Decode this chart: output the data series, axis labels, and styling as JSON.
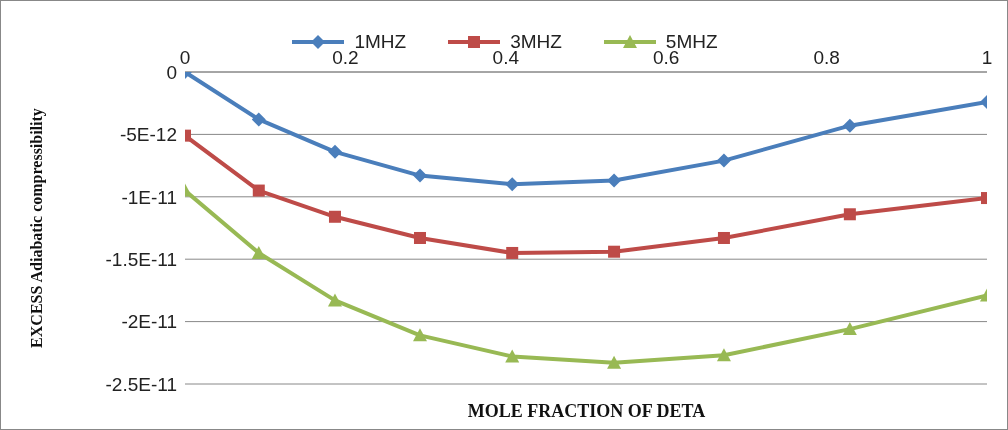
{
  "chart_data": {
    "type": "line",
    "xlabel": "MOLE FRACTION OF DETA",
    "ylabel": "EXCESS  Adiabatic compressibility",
    "x": [
      0,
      0.092,
      0.187,
      0.293,
      0.408,
      0.535,
      0.672,
      0.829,
      1.0
    ],
    "series": [
      {
        "name": "1MHZ",
        "color": "#4a7ebb",
        "marker": "diamond",
        "values": [
          0,
          -3.8e-12,
          -6.4e-12,
          -8.3e-12,
          -9e-12,
          -8.7e-12,
          -7.1e-12,
          -4.3e-12,
          -2.4e-12
        ]
      },
      {
        "name": "3MHZ",
        "color": "#be4b48",
        "marker": "square",
        "values": [
          -5.1e-12,
          -9.5e-12,
          -1.16e-11,
          -1.33e-11,
          -1.45e-11,
          -1.44e-11,
          -1.33e-11,
          -1.14e-11,
          -1.01e-11
        ]
      },
      {
        "name": "5MHZ",
        "color": "#98b954",
        "marker": "triangle",
        "values": [
          -9.5e-12,
          -1.45e-11,
          -1.83e-11,
          -2.11e-11,
          -2.28e-11,
          -2.33e-11,
          -2.27e-11,
          -2.06e-11,
          -1.79e-11
        ]
      }
    ],
    "xlim": [
      0,
      1
    ],
    "xticks": [
      0,
      0.2,
      0.4,
      0.6,
      0.8,
      1
    ],
    "ylim": [
      -2.5e-11,
      0
    ],
    "yticks": [
      {
        "value": 0,
        "label": "0"
      },
      {
        "value": -5e-12,
        "label": "-5E-12"
      },
      {
        "value": -1e-11,
        "label": "-1E-11"
      },
      {
        "value": -1.5e-11,
        "label": "-1.5E-11"
      },
      {
        "value": -2e-11,
        "label": "-2E-11"
      },
      {
        "value": -2.5e-11,
        "label": "-2.5E-11"
      }
    ],
    "grid": "y",
    "legend": "top",
    "line_style": "solid"
  }
}
